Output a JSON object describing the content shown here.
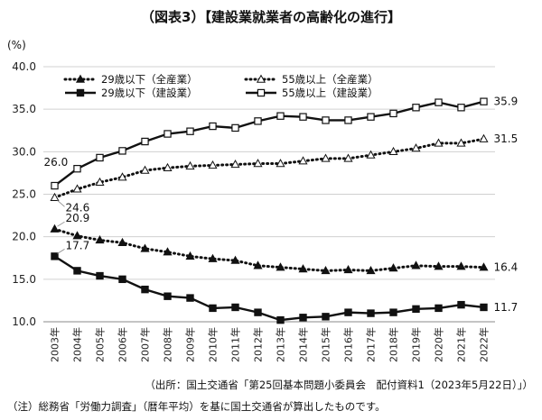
{
  "header": {
    "title": "（図表3）【建設業就業者の高齢化の進行】",
    "unit": "(%)"
  },
  "footer": {
    "source": "（出所：国土交通省「第25回基本問題小委員会　配付資料1（2023年5月22日）」）",
    "note": "（注）総務省「労働力調査」（暦年平均）を基に国土交通省が算出したものです。"
  },
  "chart_data": {
    "type": "line",
    "title": "（図表3）【建設業就業者の高齢化の進行】",
    "ylabel": "(%)",
    "ylim": [
      10.0,
      40.0
    ],
    "yticks": [
      10.0,
      15.0,
      20.0,
      25.0,
      30.0,
      35.0,
      40.0
    ],
    "grid": "horizontal",
    "legend_position": "top",
    "categories": [
      "2003年",
      "2004年",
      "2005年",
      "2006年",
      "2007年",
      "2008年",
      "2009年",
      "2010年",
      "2011年",
      "2012年",
      "2013年",
      "2014年",
      "2015年",
      "2016年",
      "2017年",
      "2018年",
      "2019年",
      "2020年",
      "2021年",
      "2022年"
    ],
    "series": [
      {
        "name": "29歳以下（全産業）",
        "style": "dotted",
        "marker": "triangle-filled",
        "values": [
          20.9,
          20.1,
          19.6,
          19.3,
          18.6,
          18.2,
          17.7,
          17.4,
          17.2,
          16.6,
          16.4,
          16.2,
          16.0,
          16.1,
          16.0,
          16.3,
          16.6,
          16.5,
          16.5,
          16.4
        ]
      },
      {
        "name": "55歳以上（全産業）",
        "style": "dotted",
        "marker": "triangle-open",
        "values": [
          24.6,
          25.6,
          26.4,
          27.0,
          27.8,
          28.1,
          28.3,
          28.4,
          28.5,
          28.6,
          28.6,
          28.9,
          29.2,
          29.2,
          29.6,
          30.0,
          30.4,
          31.0,
          31.0,
          31.5
        ]
      },
      {
        "name": "29歳以下（建設業）",
        "style": "solid",
        "marker": "square-filled",
        "values": [
          17.7,
          16.0,
          15.4,
          15.0,
          13.8,
          13.0,
          12.8,
          11.6,
          11.7,
          11.1,
          10.2,
          10.5,
          10.6,
          11.1,
          11.0,
          11.1,
          11.5,
          11.6,
          12.0,
          11.7
        ]
      },
      {
        "name": "55歳以上（建設業）",
        "style": "solid",
        "marker": "square-open",
        "values": [
          26.0,
          28.0,
          29.3,
          30.1,
          31.2,
          32.1,
          32.4,
          33.0,
          32.8,
          33.6,
          34.2,
          34.1,
          33.7,
          33.7,
          34.1,
          34.5,
          35.2,
          35.8,
          35.2,
          35.9
        ]
      }
    ],
    "data_labels": [
      {
        "series": 0,
        "index": 0,
        "text": "20.9"
      },
      {
        "series": 0,
        "index": 19,
        "text": "16.4"
      },
      {
        "series": 1,
        "index": 0,
        "text": "24.6"
      },
      {
        "series": 1,
        "index": 19,
        "text": "31.5"
      },
      {
        "series": 2,
        "index": 0,
        "text": "17.7"
      },
      {
        "series": 2,
        "index": 19,
        "text": "11.7"
      },
      {
        "series": 3,
        "index": 0,
        "text": "26.0"
      },
      {
        "series": 3,
        "index": 19,
        "text": "35.9"
      }
    ]
  }
}
